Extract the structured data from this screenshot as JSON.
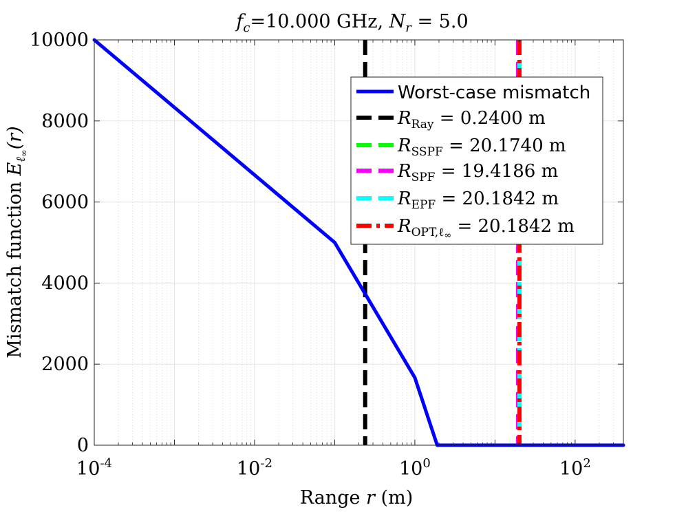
{
  "chart_data": {
    "type": "line",
    "title": {
      "fc_symbol": "f",
      "fc_sub": "c",
      "fc_value": "=10.000 GHz, ",
      "nr_symbol": "N",
      "nr_sub": "r",
      "nr_value": " = 5.0"
    },
    "xlabel": {
      "prefix": "Range ",
      "var": "r",
      "suffix": " (m)"
    },
    "ylabel": {
      "prefix": "Mismatch function ",
      "E": "E",
      "sub": "ℓ",
      "subsub": "∞",
      "arg": "(r)"
    },
    "x_scale": "log",
    "xlim": [
      0.0001,
      400
    ],
    "ylim": [
      0,
      10000
    ],
    "grid": true,
    "minor_grid": true,
    "x_ticks": [
      {
        "value": 0.0001,
        "base": "10",
        "exp": "-4"
      },
      {
        "value": 0.01,
        "base": "10",
        "exp": "-2"
      },
      {
        "value": 1,
        "base": "10",
        "exp": "0"
      },
      {
        "value": 100,
        "base": "10",
        "exp": "2"
      }
    ],
    "y_ticks": [
      "0",
      "2000",
      "4000",
      "6000",
      "8000",
      "10000"
    ],
    "y_tick_values": [
      0,
      2000,
      4000,
      6000,
      8000,
      10000
    ],
    "curve": {
      "name": "Worst-case mismatch",
      "color": "#0000ff",
      "x": [
        0.0001,
        0.001,
        0.01,
        0.1,
        1,
        1.9,
        10,
        100,
        400
      ],
      "y": [
        10000,
        8334,
        6667,
        5001,
        1667,
        0,
        0,
        0,
        0
      ]
    },
    "vertical_lines": [
      {
        "symbol": "R",
        "sub": "Ray",
        "sub2": "",
        "value_text": " = 0.2400 m",
        "x": 0.24,
        "color": "#000000",
        "dash": "dashed"
      },
      {
        "symbol": "R",
        "sub": "SSPF",
        "sub2": "",
        "value_text": " = 20.1740 m",
        "x": 20.174,
        "color": "#00ff00",
        "dash": "dashed"
      },
      {
        "symbol": "R",
        "sub": "SPF",
        "sub2": "",
        "value_text": " = 19.4186 m",
        "x": 19.4186,
        "color": "#ff00ff",
        "dash": "dashed"
      },
      {
        "symbol": "R",
        "sub": "EPF",
        "sub2": "",
        "value_text": " = 20.1842 m",
        "x": 20.1842,
        "color": "#00ffff",
        "dash": "dashed"
      },
      {
        "symbol": "R",
        "sub": "OPT,ℓ",
        "sub2": "∞",
        "value_text": " = 20.1842 m",
        "x": 20.1842,
        "color": "#ff0000",
        "dash": "dashdot"
      }
    ],
    "legend": {
      "placement": "top-right",
      "entries": [
        {
          "label": "Worst-case mismatch",
          "color": "#0000ff",
          "style": "solid"
        }
      ]
    }
  }
}
